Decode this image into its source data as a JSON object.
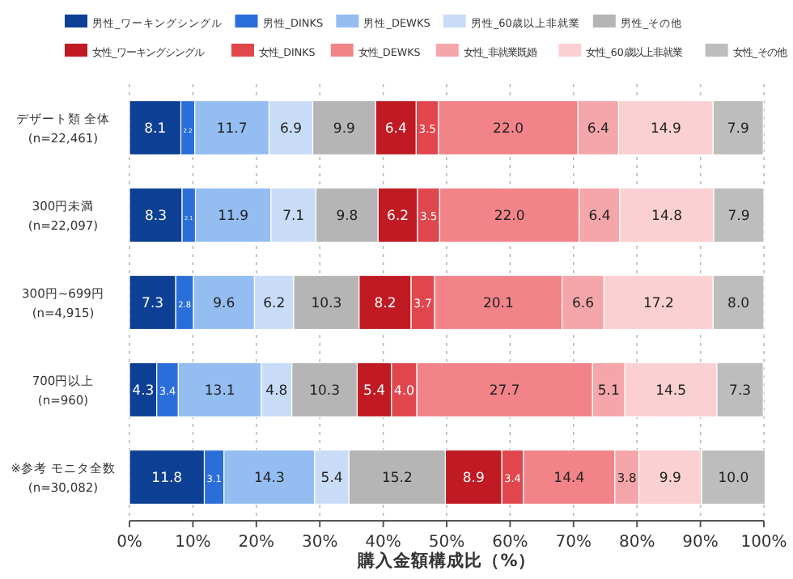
{
  "chart_data": {
    "type": "bar",
    "orientation": "horizontal",
    "stacked": true,
    "grid": "x",
    "legend": "top",
    "xlabel": "購入金額構成比（%）",
    "categories": [
      "デザート類 全体\n(n=22,461)",
      "300円未満\n(n=22,097)",
      "300円~699円\n(n=4,915)",
      "700円以上\n(n=960)",
      "※参考 モニタ全数\n(n=30,082)"
    ],
    "xlim": [
      0,
      100
    ],
    "xticks": [
      {
        "value": 0,
        "label": "0%"
      },
      {
        "value": 10,
        "label": "10%"
      },
      {
        "value": 20,
        "label": "20%"
      },
      {
        "value": 30,
        "label": "30%"
      },
      {
        "value": 40,
        "label": "40%"
      },
      {
        "value": 50,
        "label": "50%"
      },
      {
        "value": 60,
        "label": "60%"
      },
      {
        "value": 70,
        "label": "70%"
      },
      {
        "value": 80,
        "label": "80%"
      },
      {
        "value": 90,
        "label": "90%"
      },
      {
        "value": 100,
        "label": "100%"
      }
    ],
    "series": [
      {
        "name": "男性_ワーキングシングル",
        "color": "#0d3f94",
        "values": [
          8.1,
          8.3,
          7.3,
          4.3,
          11.8
        ],
        "value_labels": [
          "8.1",
          "8.3",
          "7.3",
          "4.3",
          "11.8"
        ]
      },
      {
        "name": "男性_DINKS",
        "color": "#2a6fd9",
        "values": [
          2.2,
          2.1,
          2.8,
          3.4,
          3.1
        ],
        "value_labels": [
          "2.2",
          "2.1",
          "2.8",
          "3.4",
          "3.1"
        ]
      },
      {
        "name": "男性_DEWKS",
        "color": "#94bdf2",
        "values": [
          11.7,
          11.9,
          9.6,
          13.1,
          14.3
        ],
        "value_labels": [
          "11.7",
          "11.9",
          "9.6",
          "13.1",
          "14.3"
        ]
      },
      {
        "name": "男性_60歳以上非就業",
        "color": "#c9dcf7",
        "values": [
          6.9,
          7.1,
          6.2,
          4.8,
          5.4
        ],
        "value_labels": [
          "6.9",
          "7.1",
          "6.2",
          "4.8",
          "5.4"
        ]
      },
      {
        "name": "男性_その他",
        "color": "#b5b5b5",
        "values": [
          9.9,
          9.8,
          10.3,
          10.3,
          15.2
        ],
        "value_labels": [
          "9.9",
          "9.8",
          "10.3",
          "10.3",
          "15.2"
        ]
      },
      {
        "name": "女性_ワーキングシングル",
        "color": "#c01a22",
        "values": [
          6.4,
          6.2,
          8.2,
          5.4,
          8.9
        ],
        "value_labels": [
          "6.4",
          "6.2",
          "8.2",
          "5.4",
          "8.9"
        ]
      },
      {
        "name": "女性_DINKS",
        "color": "#e0474c",
        "values": [
          3.5,
          3.5,
          3.7,
          4.0,
          3.4
        ],
        "value_labels": [
          "3.5",
          "3.5",
          "3.7",
          "4.0",
          "3.4"
        ]
      },
      {
        "name": "女性_DEWKS",
        "color": "#f28489",
        "values": [
          22.0,
          22.0,
          20.1,
          27.7,
          14.4
        ],
        "value_labels": [
          "22.0",
          "22.0",
          "20.1",
          "27.7",
          "14.4"
        ]
      },
      {
        "name": "女性_非就業既婚",
        "color": "#f5a6aa",
        "values": [
          6.4,
          6.4,
          6.6,
          5.1,
          3.8
        ],
        "value_labels": [
          "6.4",
          "6.4",
          "6.6",
          "5.1",
          "3.8"
        ]
      },
      {
        "name": "女性_60歳以上非就業",
        "color": "#fbd0d2",
        "values": [
          14.9,
          14.8,
          17.2,
          14.5,
          9.9
        ],
        "value_labels": [
          "14.9",
          "14.8",
          "17.2",
          "14.5",
          "9.9"
        ]
      },
      {
        "name": "女性_その他",
        "color": "#bdbdbd",
        "values": [
          7.9,
          7.9,
          8.0,
          7.3,
          10.0
        ],
        "value_labels": [
          "7.9",
          "7.9",
          "8.0",
          "7.3",
          "10.0"
        ]
      }
    ]
  }
}
